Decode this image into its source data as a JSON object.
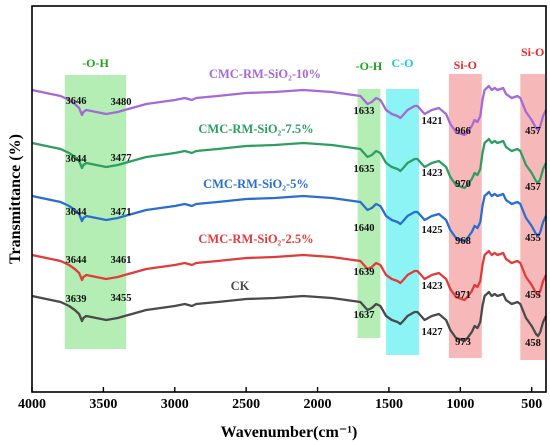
{
  "chart_data": {
    "type": "line",
    "xlabel": "Wavenumber(cm⁻¹)",
    "ylabel": "Transmittance (%)",
    "xlim": [
      4000,
      400
    ],
    "x_reversed": true,
    "y_ticks_shown": false,
    "xticks": [
      4000,
      3500,
      3000,
      2500,
      2000,
      1500,
      1000,
      500
    ],
    "bands": [
      {
        "label": "-O-H",
        "from": 3770,
        "to": 3340,
        "color": "#9be89b",
        "label_color": "#1aa51a"
      },
      {
        "label": "-O-H",
        "from": 1720,
        "to": 1560,
        "color": "#9be89b",
        "label_color": "#1aa51a"
      },
      {
        "label": "C-O",
        "from": 1520,
        "to": 1290,
        "color": "#66f0f0",
        "label_color": "#18c8d8"
      },
      {
        "label": "Si-O",
        "from": 1080,
        "to": 850,
        "color": "#f3a0a0",
        "label_color": "#e02a2a"
      },
      {
        "label": "Si-O",
        "from": 580,
        "to": 400,
        "color": "#f3a0a0",
        "label_color": "#e02a2a"
      }
    ],
    "series": [
      {
        "name": "CMC-RM-SiO₂-10%",
        "color": "#a56ad6",
        "peaks": [
          "3646",
          "3480",
          "1633",
          "1421",
          "966",
          "457"
        ]
      },
      {
        "name": "CMC-RM-SiO₂-7.5%",
        "color": "#2e9e62",
        "peaks": [
          "3644",
          "3477",
          "1635",
          "1423",
          "970",
          "457"
        ]
      },
      {
        "name": "CMC-RM-SiO₂-5%",
        "color": "#2a6fcf",
        "peaks": [
          "3644",
          "3471",
          "1640",
          "1425",
          "968",
          "455"
        ]
      },
      {
        "name": "CMC-RM-SiO₂-2.5%",
        "color": "#e03c3c",
        "peaks": [
          "3644",
          "3461",
          "1639",
          "1423",
          "971",
          "455"
        ]
      },
      {
        "name": "CK",
        "color": "#4a4a4a",
        "peaks": [
          "3639",
          "3455",
          "1637",
          "1427",
          "973",
          "458"
        ]
      }
    ]
  }
}
